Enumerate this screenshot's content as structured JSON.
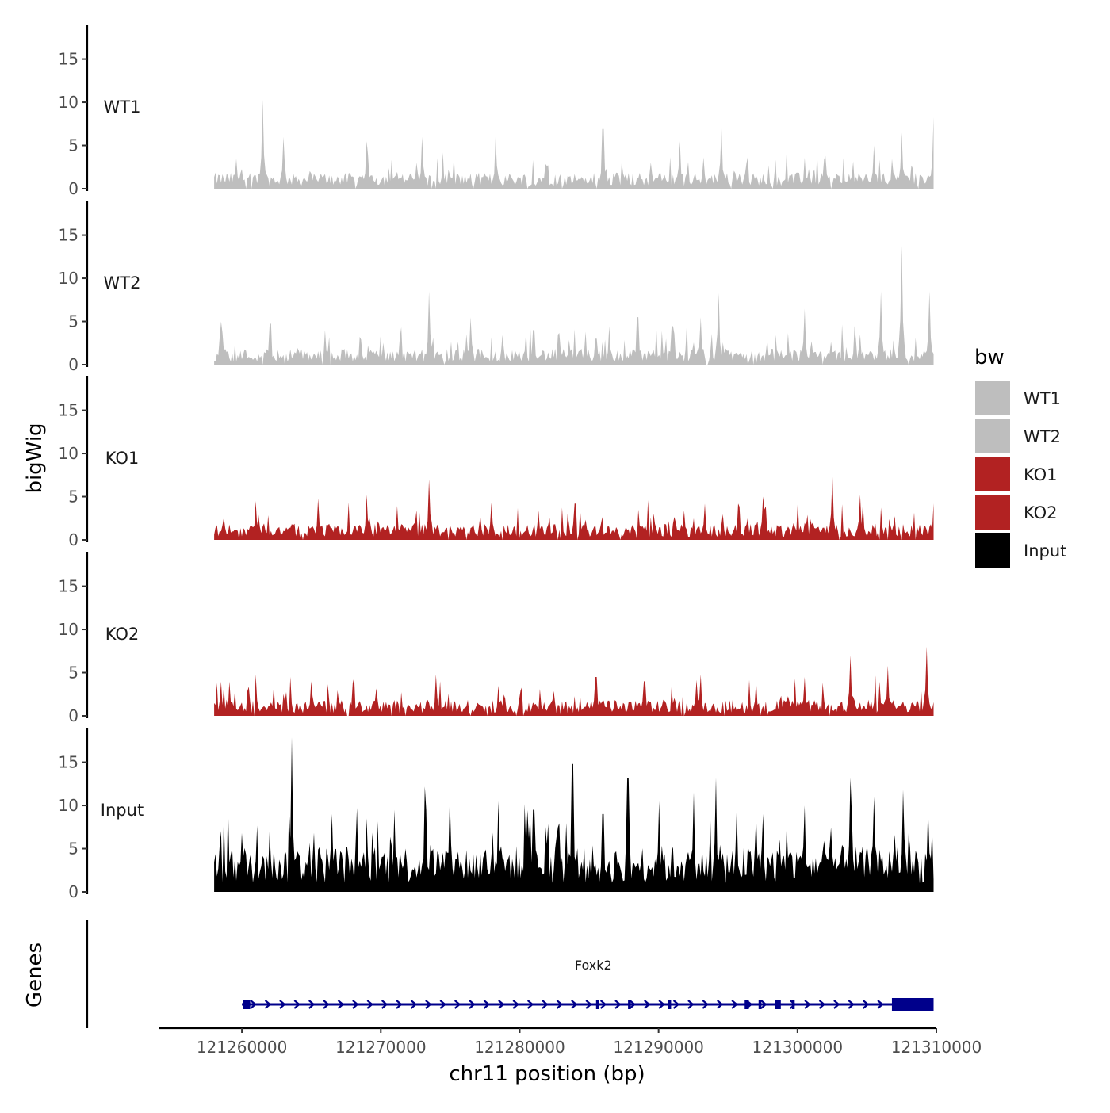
{
  "chart_data": {
    "type": "area",
    "chromosome": "chr11",
    "xlabel": "chr11 position (bp)",
    "ylabel": "bigWig",
    "genes_label": "Genes",
    "xlim": [
      121254000,
      121310000
    ],
    "data_range": [
      121258000,
      121309800
    ],
    "xticks": [
      121260000,
      121270000,
      121280000,
      121290000,
      121300000,
      121310000
    ],
    "xtick_labels": [
      "121260000",
      "121270000",
      "121280000",
      "121290000",
      "121300000",
      "121310000"
    ],
    "ylim": [
      0,
      19
    ],
    "yticks": [
      0,
      5,
      10,
      15
    ],
    "ytick_labels": [
      "0",
      "5",
      "10",
      "15"
    ],
    "grid": false,
    "series": [
      {
        "name": "WT1",
        "color": "#bebebe",
        "peaks": [
          [
            121261500,
            10.3
          ],
          [
            121263000,
            6.0
          ],
          [
            121269000,
            5.5
          ],
          [
            121273000,
            6.0
          ],
          [
            121278300,
            6.0
          ],
          [
            121286000,
            6.9
          ],
          [
            121291500,
            5.5
          ],
          [
            121294500,
            7.0
          ],
          [
            121305500,
            5.0
          ],
          [
            121307500,
            6.5
          ],
          [
            121309800,
            8.3
          ]
        ]
      },
      {
        "name": "WT2",
        "color": "#bebebe",
        "peaks": [
          [
            121258500,
            5.0
          ],
          [
            121262000,
            4.5
          ],
          [
            121266000,
            4.0
          ],
          [
            121273500,
            8.5
          ],
          [
            121276500,
            5.5
          ],
          [
            121281000,
            4.0
          ],
          [
            121285500,
            3.0
          ],
          [
            121288500,
            5.5
          ],
          [
            121291000,
            4.5
          ],
          [
            121293000,
            5.5
          ],
          [
            121294300,
            8.3
          ],
          [
            121300500,
            6.5
          ],
          [
            121304500,
            3.5
          ],
          [
            121306000,
            8.5
          ],
          [
            121307500,
            13.8
          ],
          [
            121309500,
            8.5
          ]
        ]
      },
      {
        "name": "KO1",
        "color": "#b22222",
        "peaks": [
          [
            121261000,
            4.5
          ],
          [
            121265500,
            4.8
          ],
          [
            121269000,
            5.2
          ],
          [
            121273500,
            7.0
          ],
          [
            121278000,
            4.3
          ],
          [
            121284000,
            4.2
          ],
          [
            121288500,
            3.5
          ],
          [
            121293300,
            4.2
          ],
          [
            121297500,
            5.0
          ],
          [
            121302500,
            7.6
          ],
          [
            121304500,
            5.2
          ],
          [
            121308500,
            4.5
          ]
        ]
      },
      {
        "name": "KO2",
        "color": "#b22222",
        "peaks": [
          [
            121261000,
            4.8
          ],
          [
            121265000,
            4.0
          ],
          [
            121268000,
            3.8
          ],
          [
            121274000,
            4.8
          ],
          [
            121278500,
            3.5
          ],
          [
            121285500,
            4.5
          ],
          [
            121289000,
            4.0
          ],
          [
            121293000,
            4.8
          ],
          [
            121297000,
            4.0
          ],
          [
            121300500,
            4.5
          ],
          [
            121303800,
            7.0
          ],
          [
            121306500,
            5.8
          ],
          [
            121309300,
            8.0
          ]
        ]
      },
      {
        "name": "Input",
        "color": "#000000",
        "peaks": [
          [
            121260000,
            6.8
          ],
          [
            121262000,
            7.0
          ],
          [
            121263600,
            17.9
          ],
          [
            121266500,
            9.0
          ],
          [
            121269000,
            8.5
          ],
          [
            121271000,
            9.5
          ],
          [
            121273200,
            12.2
          ],
          [
            121275000,
            11.0
          ],
          [
            121278500,
            10.5
          ],
          [
            121281000,
            9.5
          ],
          [
            121283800,
            14.8
          ],
          [
            121286000,
            9.0
          ],
          [
            121287800,
            13.2
          ],
          [
            121290000,
            10.5
          ],
          [
            121292500,
            11.5
          ],
          [
            121294100,
            13.2
          ],
          [
            121297500,
            9.0
          ],
          [
            121300500,
            10.0
          ],
          [
            121303800,
            13.2
          ],
          [
            121305500,
            11.0
          ],
          [
            121307600,
            11.8
          ],
          [
            121309400,
            9.8
          ]
        ]
      }
    ],
    "legend": {
      "title": "bw",
      "position": "right",
      "entries": [
        "WT1",
        "WT2",
        "KO1",
        "KO2",
        "Input"
      ]
    },
    "gene": {
      "name": "Foxk2",
      "strand": "+",
      "color": "#00008b",
      "start": 121260000,
      "end": 121309800,
      "exons": [
        [
          121260100,
          121260600
        ],
        [
          121285500,
          121285700
        ],
        [
          121287800,
          121288000
        ],
        [
          121290700,
          121290800
        ],
        [
          121296200,
          121296500
        ],
        [
          121297200,
          121297400
        ],
        [
          121298400,
          121298800
        ],
        [
          121299600,
          121299800
        ],
        [
          121306800,
          121309800
        ]
      ]
    }
  }
}
